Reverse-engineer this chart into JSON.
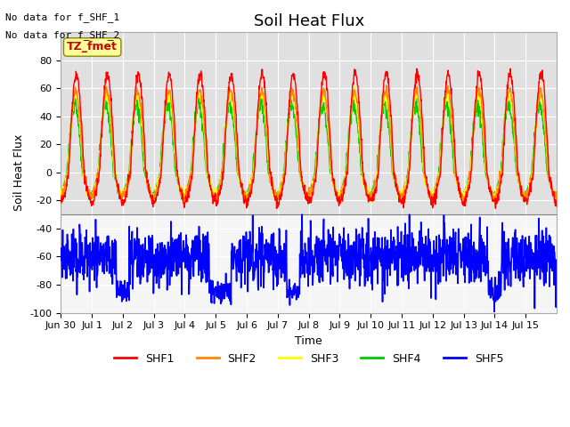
{
  "title": "Soil Heat Flux",
  "ylabel": "Soil Heat Flux",
  "xlabel": "Time",
  "xlim_days": 15.5,
  "ylim": [
    -100,
    100
  ],
  "annotations": [
    "No data for f_SHF_1",
    "No data for f_SHF_2"
  ],
  "tz_label": "TZ_fmet",
  "x_tick_labels": [
    "Jun 30",
    "Jul 1",
    "Jul 2",
    "Jul 3",
    "Jul 4",
    "Jul 5",
    "Jul 6",
    "Jul 7",
    "Jul 8",
    "Jul 9",
    "Jul 10",
    "Jul 11",
    "Jul 12",
    "Jul 13",
    "Jul 14",
    "Jul 15"
  ],
  "legend_labels": [
    "SHF1",
    "SHF2",
    "SHF3",
    "SHF4",
    "SHF5"
  ],
  "legend_colors": [
    "#ff0000",
    "#ff8800",
    "#ffff00",
    "#00cc00",
    "#0000ff"
  ],
  "shf1_color": "#ff0000",
  "shf2_color": "#ff8800",
  "shf3_color": "#ffff00",
  "shf4_color": "#00cc00",
  "shf5_color": "#0000ff",
  "background_color": "#ffffff",
  "plot_bg_color": "#e8e8e8",
  "upper_bg_color": "#d8d8d8",
  "lower_bg_color": "#ffffff"
}
